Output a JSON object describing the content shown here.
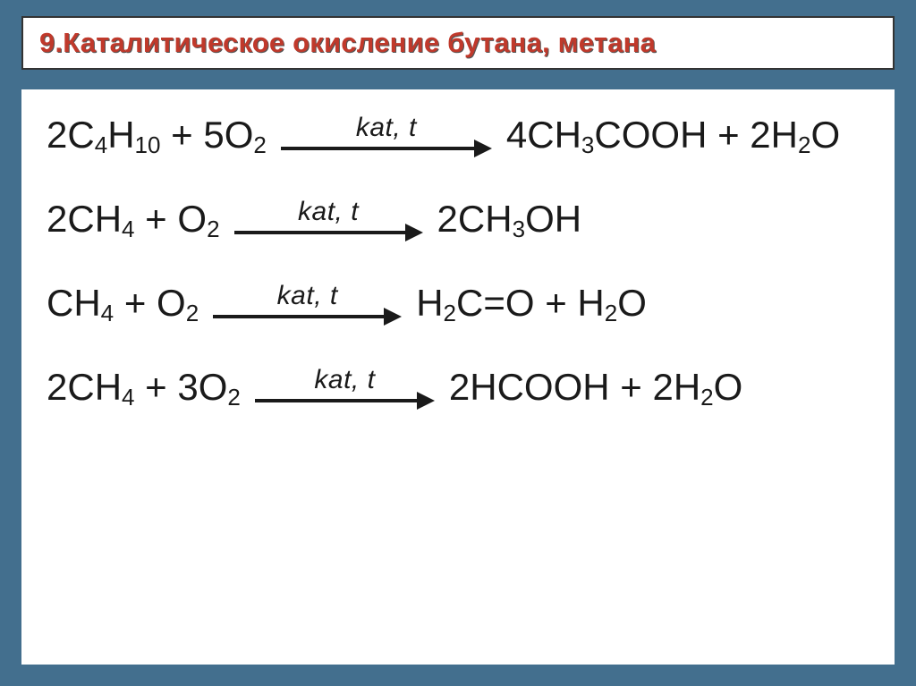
{
  "header": {
    "title": "9.Каталитическое окисление бутана, метана"
  },
  "arrow_label": "kat, t",
  "equations": [
    {
      "lhs": "2C<sub>4</sub>H<sub>10</sub> + 5O<sub>2</sub>",
      "rhs": "4CH<sub>3</sub>COOH + 2H<sub>2</sub>O",
      "arrow_width": 240
    },
    {
      "lhs": "2CH<sub>4</sub> + O<sub>2</sub>",
      "rhs": "2CH<sub>3</sub>OH",
      "arrow_width": 215
    },
    {
      "lhs": "CH<sub>4</sub> + O<sub>2</sub>",
      "rhs": "H<sub>2</sub>C=O + H<sub>2</sub>O",
      "arrow_width": 215
    },
    {
      "lhs": "2CH<sub>4</sub> + 3O<sub>2</sub>",
      "rhs": "2HCOOH + 2H<sub>2</sub>O",
      "arrow_width": 205
    }
  ],
  "colors": {
    "background": "#436f8e",
    "panel_bg": "#ffffff",
    "title_color": "#c0392b",
    "equation_color": "#1a1a1a",
    "arrow_color": "#1a1a1a"
  },
  "typography": {
    "title_fontsize": 31,
    "equation_fontsize": 42,
    "arrow_label_fontsize": 30
  }
}
